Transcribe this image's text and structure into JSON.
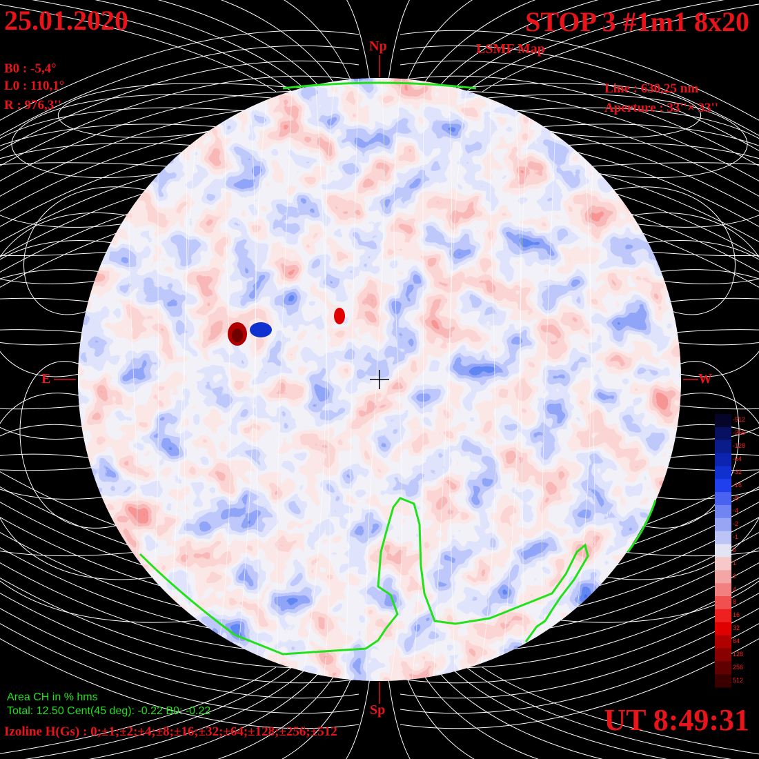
{
  "header": {
    "date": "25.01.2020",
    "title": "STOP 3 #1m1 8x20",
    "subtitle": "LSMF  Map"
  },
  "ephemeris": {
    "b0": "B0 : -5,4°",
    "l0": "L0 : 110,1°",
    "radius": "R  : 976,3''"
  },
  "instrument": {
    "line": "Line :  630,25 nm",
    "aperture": "Aperture : 33''× 33''"
  },
  "orientation": {
    "north": "Np",
    "south": "Sp",
    "east": "E",
    "west": "W"
  },
  "coronal_hole": {
    "area_label": "Area CH in % hms",
    "values": "Total: 12.50    Cent(45 deg): -0.22   B0: -0.22"
  },
  "isoline": "Izoline H(Gs) : 0;±1;±2;±4;±8;±16;±32;±64;±128;±256;±512",
  "time": "UT 8:49:31",
  "color_scale": {
    "labels": [
      "-512",
      "-256",
      "-128",
      "-64",
      "-32",
      "-16",
      "-8",
      "-4",
      "-2",
      "-1",
      "0",
      "1",
      "2",
      "4",
      "8",
      "16",
      "32",
      "64",
      "128",
      "256",
      "512"
    ],
    "colors": [
      "#05052a",
      "#081060",
      "#0a1c8a",
      "#0c24b0",
      "#1030d0",
      "#2040ee",
      "#4a62f0",
      "#7084f2",
      "#98a4f4",
      "#bcc4f6",
      "#e2e4f4",
      "#f6c8c8",
      "#f4a6a6",
      "#f28080",
      "#f05050",
      "#ee2020",
      "#e00000",
      "#b00000",
      "#880000",
      "#600000",
      "#3a0000"
    ]
  },
  "colors": {
    "positive": "#e8141a",
    "negative": "#2040ee",
    "text_red": "#e8141a",
    "coronal_hole_boundary": "#22e01a",
    "field_lines": "#ffffff"
  }
}
